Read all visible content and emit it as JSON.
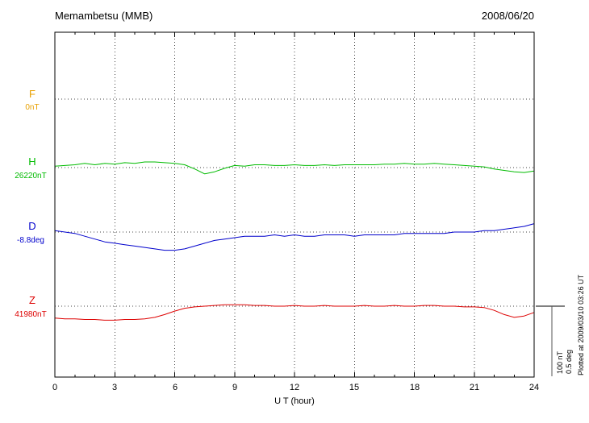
{
  "header": {
    "title": "Memambetsu (MMB)",
    "date": "2008/06/20"
  },
  "traces": [
    {
      "id": "F",
      "label": "F",
      "baseline_label": "0nT",
      "color": "#e8a000"
    },
    {
      "id": "H",
      "label": "H",
      "baseline_label": "26220nT",
      "color": "#00bb00"
    },
    {
      "id": "D",
      "label": "D",
      "baseline_label": "-8.8deg",
      "color": "#0000cc"
    },
    {
      "id": "Z",
      "label": "Z",
      "baseline_label": "41980nT",
      "color": "#dd0000"
    }
  ],
  "x_axis": {
    "label": "U T (hour)",
    "ticks": [
      "0",
      "3",
      "6",
      "9",
      "12",
      "15",
      "18",
      "21",
      "24"
    ],
    "tick_hours": [
      0,
      3,
      6,
      9,
      12,
      15,
      18,
      21,
      24
    ],
    "min": 0,
    "max": 24
  },
  "scale_bar": {
    "line1": "100 nT",
    "line2": "0.5 deg"
  },
  "plotted_note": "Plotted at 2009/03/10 03:26 UT",
  "chart_data": {
    "type": "line",
    "title": "Memambetsu (MMB)",
    "date": "2008/06/20",
    "xlabel": "U T (hour)",
    "x_range": [
      0,
      24
    ],
    "x_tick_interval_hours": 3,
    "grid": "dotted vertical lines every 3 h; dotted horizontal baseline per trace",
    "scale_bar": {
      "nT_per_bar": 100,
      "deg_per_bar": 0.5
    },
    "x": [
      0,
      0.5,
      1,
      1.5,
      2,
      2.5,
      3,
      3.5,
      4,
      4.5,
      5,
      5.5,
      6,
      6.5,
      7,
      7.5,
      8,
      8.5,
      9,
      9.5,
      10,
      10.5,
      11,
      11.5,
      12,
      12.5,
      13,
      13.5,
      14,
      14.5,
      15,
      15.5,
      16,
      16.5,
      17,
      17.5,
      18,
      18.5,
      19,
      19.5,
      20,
      20.5,
      21,
      21.5,
      22,
      22.5,
      23,
      23.5,
      24
    ],
    "series": [
      {
        "name": "F",
        "baseline": "0 nT",
        "unit": "nT offset from baseline",
        "color": "#e8a000",
        "values": [],
        "note": "no visible trace; only dotted baseline at 0 nT shown"
      },
      {
        "name": "H",
        "baseline": "26220 nT",
        "unit": "nT offset from baseline",
        "color": "#00bb00",
        "values": [
          2,
          3,
          4,
          6,
          4,
          6,
          5,
          7,
          6,
          8,
          8,
          7,
          6,
          4,
          -2,
          -9,
          -6,
          -1,
          3,
          2,
          4,
          4,
          3,
          3,
          4,
          3,
          3,
          4,
          3,
          4,
          4,
          4,
          4,
          5,
          5,
          6,
          5,
          5,
          6,
          5,
          4,
          3,
          2,
          1,
          -2,
          -4,
          -6,
          -7,
          -5
        ]
      },
      {
        "name": "D",
        "baseline": "-8.8 deg",
        "unit": "deg offset from baseline",
        "color": "#0000cc",
        "values": [
          0.01,
          0.0,
          -0.01,
          -0.03,
          -0.05,
          -0.07,
          -0.08,
          -0.09,
          -0.1,
          -0.11,
          -0.12,
          -0.13,
          -0.13,
          -0.12,
          -0.1,
          -0.08,
          -0.06,
          -0.05,
          -0.04,
          -0.03,
          -0.03,
          -0.03,
          -0.02,
          -0.03,
          -0.02,
          -0.03,
          -0.03,
          -0.02,
          -0.02,
          -0.02,
          -0.03,
          -0.02,
          -0.02,
          -0.02,
          -0.02,
          -0.01,
          -0.01,
          -0.01,
          -0.01,
          -0.01,
          0.0,
          0.0,
          0.0,
          0.01,
          0.01,
          0.02,
          0.03,
          0.04,
          0.06
        ]
      },
      {
        "name": "Z",
        "baseline": "41980 nT",
        "unit": "nT offset from baseline",
        "color": "#dd0000",
        "values": [
          -17,
          -18,
          -18,
          -19,
          -19,
          -20,
          -20,
          -19,
          -19,
          -18,
          -16,
          -12,
          -7,
          -3,
          -1,
          0,
          1,
          2,
          2,
          2,
          1,
          1,
          0,
          0,
          1,
          0,
          0,
          1,
          0,
          0,
          0,
          1,
          0,
          0,
          1,
          0,
          0,
          1,
          1,
          0,
          0,
          -1,
          -1,
          -2,
          -6,
          -12,
          -16,
          -14,
          -9
        ]
      }
    ]
  }
}
